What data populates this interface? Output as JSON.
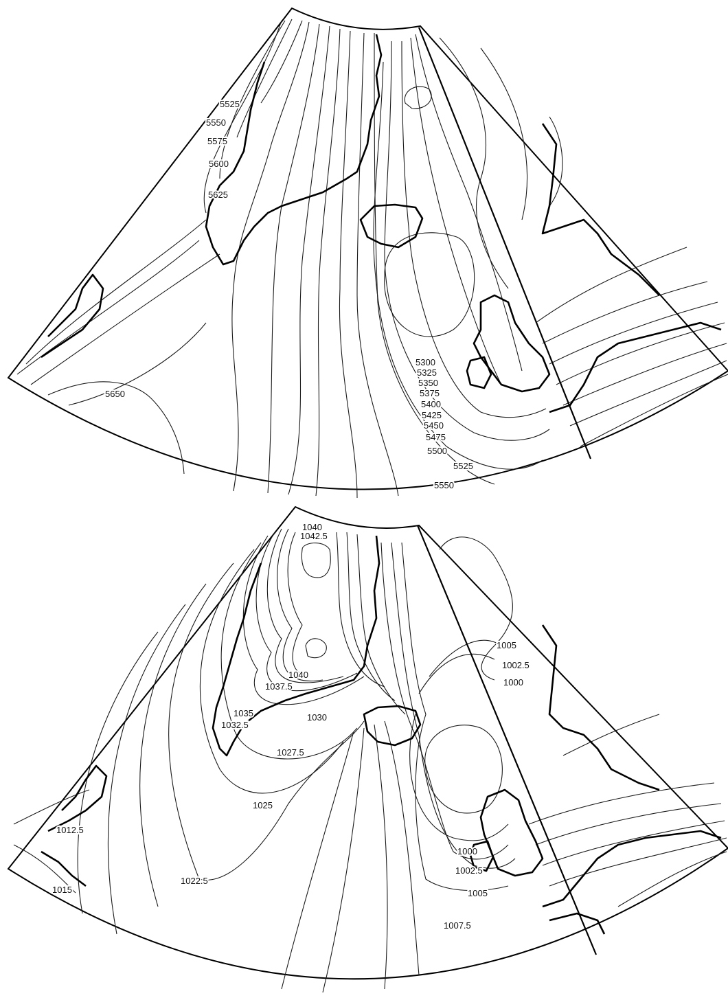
{
  "maps": [
    {
      "id": "upper",
      "contour_labels": [
        "5525",
        "5550",
        "5575",
        "5600",
        "5625",
        "5650",
        "5300",
        "5325",
        "5350",
        "5375",
        "5400",
        "5425",
        "5450",
        "5475",
        "5500",
        "5525",
        "5550"
      ]
    },
    {
      "id": "lower",
      "contour_labels": [
        "1040",
        "1042.5",
        "1040",
        "1037.5",
        "1035",
        "1032.5",
        "1030",
        "1027.5",
        "1025",
        "1022.5",
        "1012.5",
        "1015",
        "1005",
        "1002.5",
        "1000",
        "1000",
        "1002.5",
        "1005",
        "1007.5"
      ]
    }
  ],
  "style": {
    "line_color": "#1a1a1a",
    "background": "#ffffff"
  }
}
